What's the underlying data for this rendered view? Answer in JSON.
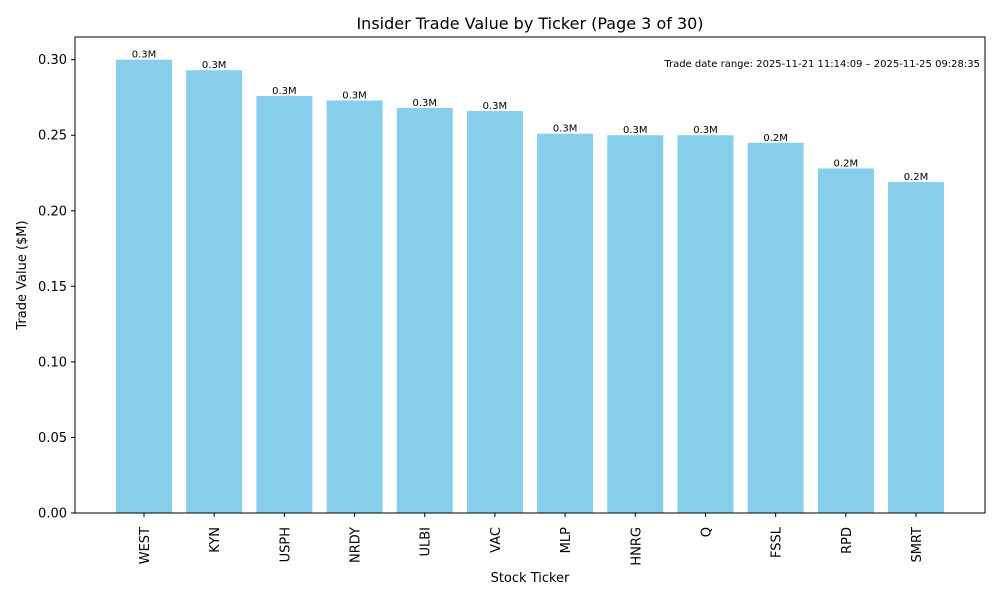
{
  "chart_data": {
    "type": "bar",
    "title": "Insider Trade Value by Ticker (Page 3 of 30)",
    "xlabel": "Stock Ticker",
    "ylabel": "Trade Value ($M)",
    "ylim": [
      0,
      0.315
    ],
    "yticks": [
      "0.00",
      "0.05",
      "0.10",
      "0.15",
      "0.20",
      "0.25",
      "0.30"
    ],
    "categories": [
      "WEST",
      "KYN",
      "USPH",
      "NRDY",
      "ULBI",
      "VAC",
      "MLP",
      "HNRG",
      "Q",
      "FSSL",
      "RPD",
      "SMRT"
    ],
    "values": [
      0.3,
      0.293,
      0.276,
      0.273,
      0.268,
      0.266,
      0.251,
      0.25,
      0.25,
      0.245,
      0.228,
      0.219
    ],
    "data_labels": [
      "0.3M",
      "0.3M",
      "0.3M",
      "0.3M",
      "0.3M",
      "0.3M",
      "0.3M",
      "0.3M",
      "0.3M",
      "0.2M",
      "0.2M",
      "0.2M"
    ],
    "annotation": "Trade date range: 2025-11-21 11:14:09 – 2025-11-25 09:28:35",
    "bar_color": "#87ceeb",
    "grid": false,
    "legend": "none"
  }
}
